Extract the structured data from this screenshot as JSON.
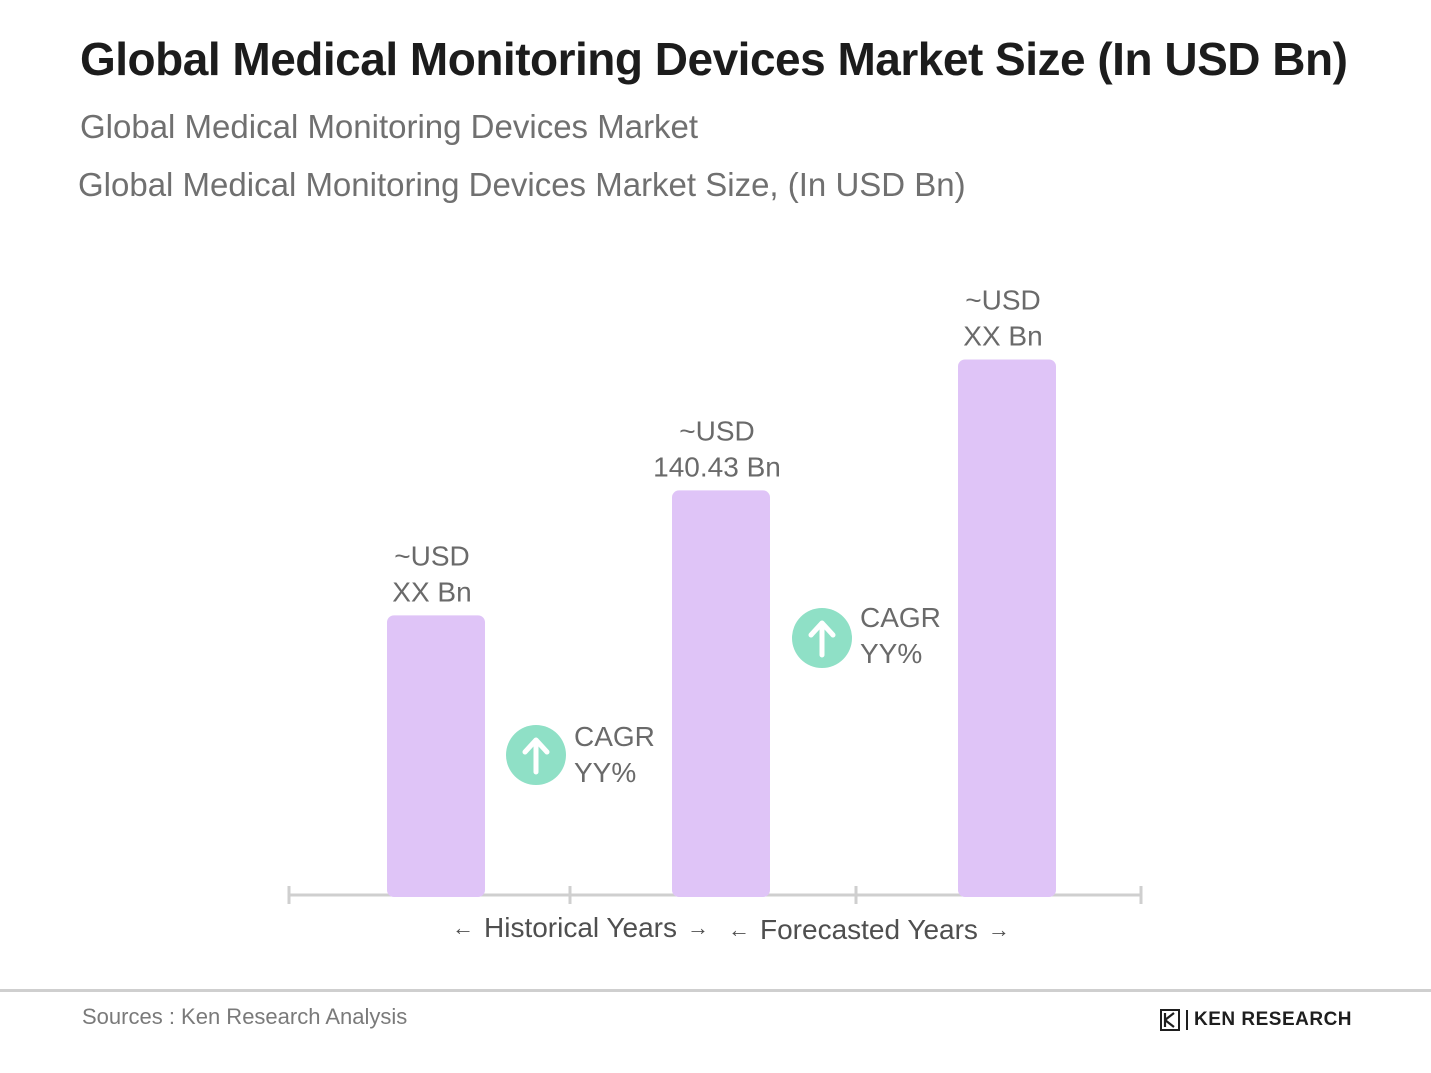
{
  "header": {
    "title": "Global Medical Monitoring Devices Market Size (In USD Bn)",
    "subtitle_1": "Global Medical Monitoring Devices Market",
    "subtitle_2": "Global Medical Monitoring Devices Market Size, (In USD Bn)"
  },
  "chart_data": {
    "type": "bar",
    "categories": [
      "",
      "",
      ""
    ],
    "values": [
      47,
      68,
      90
    ],
    "value_scale": "relative",
    "data_labels": [
      [
        "~USD",
        "XX Bn"
      ],
      [
        "~USD",
        "140.43 Bn"
      ],
      [
        "~USD",
        "XX Bn"
      ]
    ],
    "cagr_annotations": [
      {
        "line1": "CAGR",
        "line2": "YY%"
      },
      {
        "line1": "CAGR",
        "line2": "YY%"
      }
    ],
    "periods": [
      {
        "label": "Historical Years",
        "left_arrow": "←",
        "right_arrow": "→"
      },
      {
        "label": "Forecasted Years",
        "left_arrow": "←",
        "right_arrow": "→"
      }
    ],
    "bar_color": "#dfc4f7",
    "cagr_color": "#8fe0c6",
    "axis_color": "#cfcfcf",
    "grid": false,
    "legend": "none",
    "ylim": [
      0,
      100
    ]
  },
  "footer": {
    "source": "Sources : Ken Research Analysis",
    "logo_text": "KEN RESEARCH"
  }
}
